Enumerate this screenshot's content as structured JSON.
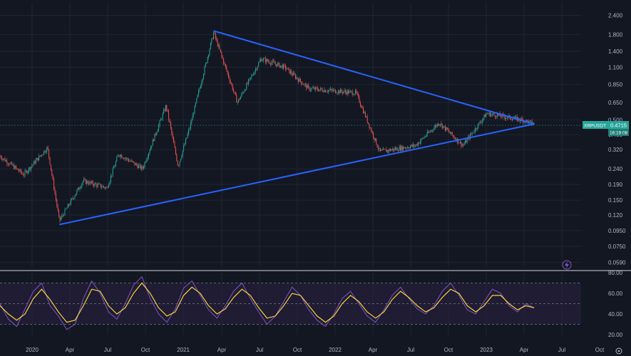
{
  "colors": {
    "background": "#131722",
    "grid": "#1f2433",
    "candle_up": "#26a69a",
    "candle_down": "#ef5350",
    "trendline": "#2962ff",
    "rsi_line": "#7e57c2",
    "rsi_ma": "#f5d33b",
    "rsi_band": "#2a2142",
    "tag_bg": "#26a69a",
    "text": "#b2b5be"
  },
  "icons": {
    "lightning": "lightning-icon",
    "settings": "gear-icon"
  },
  "symbol_tag": {
    "ticker": "XRPUSDT",
    "price": "0.4715",
    "countdown": "16:19:08"
  },
  "chart_data": [
    {
      "type": "candlestick",
      "title": "",
      "y_scale": "log",
      "y_ticks": [
        "2.400",
        "1.800",
        "1.400",
        "1.100",
        "0.850",
        "0.650",
        "0.500",
        "0.400",
        "0.320",
        "0.240",
        "0.190",
        "0.150",
        "0.120",
        "0.0950",
        "0.0750",
        "0.0590"
      ],
      "ylim": [
        0.055,
        2.6
      ],
      "x_ticks": [
        "2020",
        "Apr",
        "Jul",
        "Oct",
        "2021",
        "Apr",
        "Jul",
        "Oct",
        "2022",
        "Apr",
        "Jul",
        "Oct",
        "2023",
        "Apr",
        "Jul",
        "Oct"
      ],
      "price_path": [
        {
          "x": "2019-10",
          "y": 0.29
        },
        {
          "x": "2019-12",
          "y": 0.22
        },
        {
          "x": "2020-02",
          "y": 0.33
        },
        {
          "x": "2020-03",
          "y": 0.11
        },
        {
          "x": "2020-05",
          "y": 0.2
        },
        {
          "x": "2020-07",
          "y": 0.18
        },
        {
          "x": "2020-08",
          "y": 0.3
        },
        {
          "x": "2020-10",
          "y": 0.24
        },
        {
          "x": "2020-12",
          "y": 0.62
        },
        {
          "x": "2021-01",
          "y": 0.25
        },
        {
          "x": "2021-02",
          "y": 0.45
        },
        {
          "x": "2021-04",
          "y": 1.85
        },
        {
          "x": "2021-06",
          "y": 0.65
        },
        {
          "x": "2021-08",
          "y": 1.25
        },
        {
          "x": "2021-10",
          "y": 1.1
        },
        {
          "x": "2021-12",
          "y": 0.8
        },
        {
          "x": "2022-04",
          "y": 0.75
        },
        {
          "x": "2022-06",
          "y": 0.31
        },
        {
          "x": "2022-09",
          "y": 0.34
        },
        {
          "x": "2022-11",
          "y": 0.48
        },
        {
          "x": "2023-01",
          "y": 0.34
        },
        {
          "x": "2023-03",
          "y": 0.55
        },
        {
          "x": "2023-06",
          "y": 0.5
        },
        {
          "x": "2023-07",
          "y": 0.4715
        }
      ],
      "trendlines": [
        {
          "from": {
            "x": "2021-04",
            "y": 1.9
          },
          "to": {
            "x": "2023-07",
            "y": 0.47
          }
        },
        {
          "from": {
            "x": "2020-03",
            "y": 0.104
          },
          "to": {
            "x": "2023-07",
            "y": 0.47
          }
        }
      ]
    },
    {
      "type": "line",
      "title": "",
      "y_ticks": [
        "80.00",
        "60.00",
        "40.00",
        "20.00"
      ],
      "ylim": [
        20,
        80
      ],
      "band": [
        30,
        70
      ],
      "series": [
        {
          "values": [
            50,
            35,
            28,
            45,
            62,
            70,
            48,
            38,
            25,
            30,
            55,
            72,
            60,
            42,
            35,
            50,
            68,
            76,
            55,
            40,
            32,
            45,
            65,
            72,
            58,
            44,
            36,
            48,
            62,
            70,
            55,
            42,
            30,
            38,
            52,
            66,
            58,
            44,
            34,
            28,
            40,
            55,
            62,
            50,
            38,
            32,
            44,
            58,
            66,
            55,
            45,
            40,
            48,
            62,
            70,
            58,
            44,
            40,
            52,
            64,
            60,
            48,
            42,
            50,
            46
          ]
        },
        {
          "values": [
            48,
            40,
            34,
            40,
            55,
            64,
            54,
            42,
            32,
            34,
            48,
            64,
            62,
            48,
            40,
            46,
            60,
            70,
            60,
            46,
            38,
            42,
            58,
            66,
            60,
            48,
            40,
            45,
            56,
            64,
            58,
            46,
            36,
            38,
            48,
            60,
            58,
            48,
            38,
            32,
            38,
            50,
            58,
            52,
            42,
            36,
            42,
            54,
            62,
            56,
            48,
            42,
            46,
            56,
            64,
            60,
            48,
            42,
            48,
            58,
            58,
            50,
            44,
            48,
            46
          ]
        }
      ]
    }
  ]
}
